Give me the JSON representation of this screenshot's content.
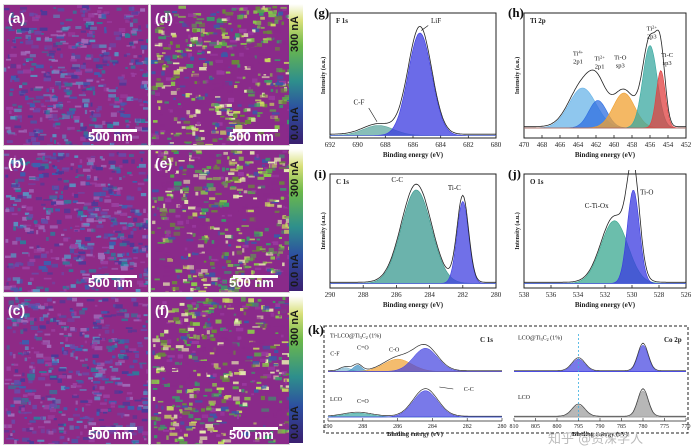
{
  "figure": {
    "maps": [
      {
        "label": "(a)",
        "scale": "500 nm",
        "palette": "low"
      },
      {
        "label": "(b)",
        "scale": "500 nm",
        "palette": "low"
      },
      {
        "label": "(c)",
        "scale": "500 nm",
        "palette": "low"
      },
      {
        "label": "(d)",
        "scale": "500 nm",
        "palette": "high"
      },
      {
        "label": "(e)",
        "scale": "500 nm",
        "palette": "high"
      },
      {
        "label": "(f)",
        "scale": "500 nm",
        "palette": "high"
      }
    ],
    "colorbars": [
      {
        "top": "300 nA",
        "bottom": "0.0 nA"
      },
      {
        "top": "300 nA",
        "bottom": "0.0 nA"
      },
      {
        "top": "300 nA",
        "bottom": "0.0 nA"
      }
    ],
    "watermark": "知乎 @资深学人"
  },
  "chart_data": [
    {
      "id": "g",
      "panel_label": "(g)",
      "title": "F 1s",
      "type": "line",
      "xlabel": "Binding energy (eV)",
      "ylabel": "Intensity (a.u.)",
      "xlim": [
        692,
        680
      ],
      "xticks": [
        692,
        690,
        688,
        686,
        684,
        682,
        680
      ],
      "peaks": [
        {
          "label": "C-F",
          "center": 688.5,
          "height": 0.08,
          "width": 1.1,
          "color": "#5fa8a0"
        },
        {
          "label": "LiF",
          "center": 685.5,
          "height": 0.82,
          "width": 0.85,
          "color": "#3a3ae0"
        }
      ]
    },
    {
      "id": "h",
      "panel_label": "(h)",
      "title": "Ti 2p",
      "type": "line",
      "xlabel": "Binding energy (eV)",
      "ylabel": "Intensity (a.u.)",
      "xlim": [
        470,
        452
      ],
      "xticks": [
        470,
        468,
        466,
        464,
        462,
        460,
        458,
        456,
        454,
        452
      ],
      "peaks": [
        {
          "label": "Ti4+ 2p1",
          "center": 463.5,
          "height": 0.32,
          "width": 1.5,
          "color": "#69b4e8"
        },
        {
          "label": "Ti2+ 2p1",
          "center": 461.8,
          "height": 0.22,
          "width": 1.0,
          "color": "#2f6fe0"
        },
        {
          "label": "Ti-O sp3",
          "center": 458.9,
          "height": 0.28,
          "width": 1.2,
          "color": "#f0a030"
        },
        {
          "label": "Ti2+ 2p3",
          "center": 456.0,
          "height": 0.66,
          "width": 0.8,
          "color": "#3aa8a0"
        },
        {
          "label": "Ti-C sp3",
          "center": 454.8,
          "height": 0.46,
          "width": 0.5,
          "color": "#e04040"
        }
      ],
      "peak_label_lines": [
        [
          "Ti",
          "4+"
        ],
        [
          "Ti",
          "2+"
        ],
        [
          "Ti-O",
          ""
        ],
        [
          "Ti",
          "2+"
        ],
        [
          "Ti-C",
          ""
        ]
      ],
      "peak_label_sub": [
        "2p1",
        "2p1",
        "sp3",
        "2p3",
        "sp3"
      ]
    },
    {
      "id": "i",
      "panel_label": "(i)",
      "title": "C 1s",
      "type": "line",
      "xlabel": "Binding energy (eV)",
      "ylabel": "Intensity (a.u.)",
      "xlim": [
        290,
        280
      ],
      "xticks": [
        290,
        288,
        286,
        284,
        282,
        280
      ],
      "peaks": [
        {
          "label": "C-C",
          "center": 284.8,
          "height": 0.82,
          "width": 0.9,
          "color": "#3a9a90"
        },
        {
          "label": "Ti-C",
          "center": 282.0,
          "height": 0.72,
          "width": 0.35,
          "color": "#4040e0"
        }
      ]
    },
    {
      "id": "j",
      "panel_label": "(j)",
      "title": "O 1s",
      "type": "line",
      "xlabel": "Binding energy (eV)",
      "ylabel": "Intensity (a.u.)",
      "xlim": [
        538,
        526
      ],
      "xticks": [
        538,
        536,
        534,
        532,
        530,
        528,
        526
      ],
      "peaks": [
        {
          "label": "C-Ti-Ox",
          "center": 531.3,
          "height": 0.55,
          "width": 1.0,
          "color": "#3aa890"
        },
        {
          "label": "Ti-O",
          "center": 529.9,
          "height": 0.82,
          "width": 0.45,
          "color": "#3a3ae0"
        }
      ]
    },
    {
      "id": "k1",
      "panel_label": "(k)",
      "title": "C 1s",
      "type": "line",
      "xlabel": "Binding energy (eV)",
      "xlim": [
        290,
        280
      ],
      "xticks": [
        290,
        288,
        286,
        284,
        282,
        280
      ],
      "series": [
        {
          "name": "Ti-LCO@Ti3C2 (1%)",
          "peaks": [
            {
              "label": "C-F",
              "center": 289.0,
              "height": 0.05,
              "width": 0.3,
              "color": "#7fb8d0"
            },
            {
              "label": "C=O",
              "center": 288.3,
              "height": 0.08,
              "width": 0.25,
              "color": "#3a8fc0"
            },
            {
              "label": "C-O",
              "center": 286.0,
              "height": 0.16,
              "width": 0.8,
              "color": "#f0a030"
            },
            {
              "label": "C-C",
              "center": 284.4,
              "height": 0.3,
              "width": 0.7,
              "color": "#4040e0"
            }
          ]
        },
        {
          "name": "LCO",
          "peaks": [
            {
              "label": "C=O",
              "center": 288.3,
              "height": 0.05,
              "width": 0.8,
              "color": "#3aa8a0"
            },
            {
              "label": "C-C",
              "center": 284.4,
              "height": 0.34,
              "width": 0.7,
              "color": "#4040e0"
            }
          ]
        }
      ],
      "series_labels": [
        "Ti-LCO@Ti",
        "3",
        "C",
        "2",
        " (1%)"
      ]
    },
    {
      "id": "k2",
      "title": "Co 2p",
      "type": "line",
      "xlabel": "Binding energy (eV)",
      "xlim": [
        810,
        770
      ],
      "xticks": [
        810,
        805,
        800,
        795,
        790,
        785,
        780,
        775,
        770
      ],
      "series": [
        {
          "name": "LCO@Ti3C2 (1%)",
          "peaks": [
            {
              "center": 795.0,
              "height": 0.16,
              "width": 1.5,
              "color": "#4040e0"
            },
            {
              "center": 780.0,
              "height": 0.34,
              "width": 1.2,
              "color": "#4040e0"
            }
          ]
        },
        {
          "name": "LCO",
          "peaks": [
            {
              "center": 795.0,
              "height": 0.15,
              "width": 1.5,
              "color": "#999999"
            },
            {
              "center": 780.0,
              "height": 0.34,
              "width": 1.2,
              "color": "#999999"
            }
          ]
        }
      ],
      "series_labels": [
        "LCO@Ti",
        "3",
        "C",
        "2",
        " (1%)"
      ],
      "dashed_line_at": 795
    }
  ]
}
